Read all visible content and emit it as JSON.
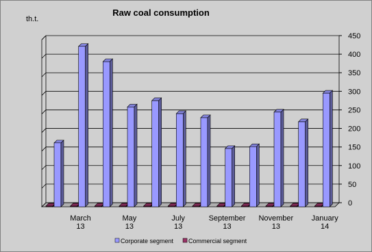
{
  "chart_data": {
    "type": "bar",
    "title": "Raw coal consumption",
    "unit_label": "th.t.",
    "categories": [
      null,
      "March 13",
      null,
      "May 13",
      null,
      "July 13",
      null,
      "September 13",
      null,
      "November 13",
      null,
      "January 14"
    ],
    "series": [
      {
        "name": "Commercial segment",
        "color": "#993366",
        "values": [
          2,
          2,
          2,
          2,
          2,
          2,
          2,
          2,
          2,
          2,
          2,
          2
        ]
      },
      {
        "name": "Corporate segment",
        "color": "#9999ff",
        "values": [
          172,
          432,
          391,
          269,
          286,
          251,
          240,
          157,
          162,
          255,
          229,
          306
        ]
      }
    ],
    "ylim": [
      0,
      450
    ],
    "yticks": [
      0,
      50,
      100,
      150,
      200,
      250,
      300,
      350,
      400,
      450
    ],
    "grid": true,
    "legend": "bottom"
  }
}
